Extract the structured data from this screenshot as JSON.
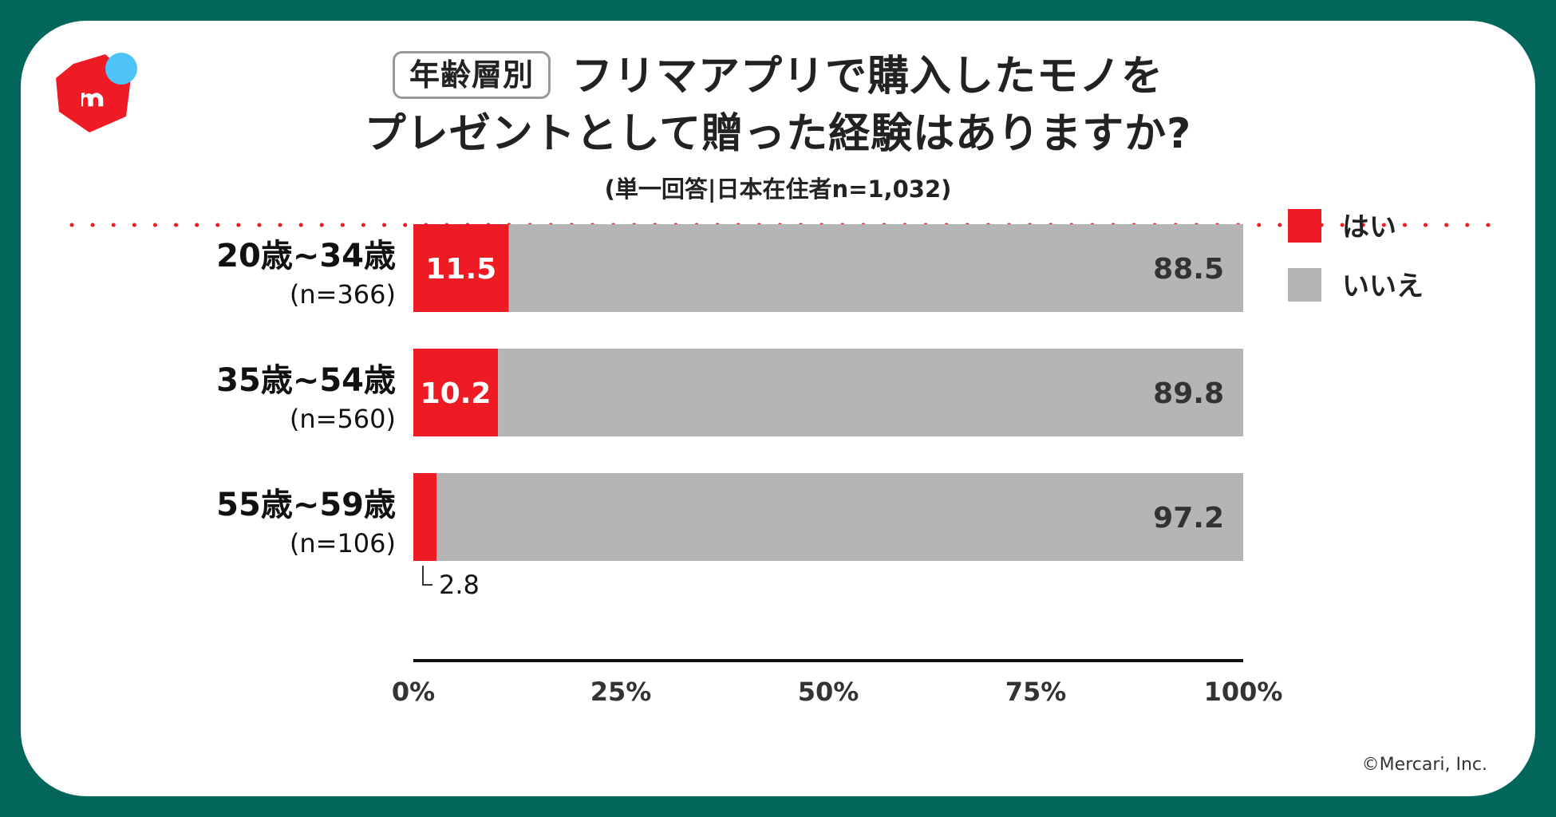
{
  "header": {
    "tag": "年齢層別",
    "title_line1": "フリマアプリで購入したモノを",
    "title_line2": "プレゼントとして贈った経験はありますか?",
    "subtitle": "(単一回答|日本在住者n=1,032)"
  },
  "footer": {
    "copyright": "©Mercari, Inc."
  },
  "colors": {
    "yes": "#ee1b24",
    "no": "#b5b5b5",
    "frame": "#02665b",
    "logo_dot": "#4ec3f7"
  },
  "icons": {
    "logo": "mercari-logo-icon"
  },
  "chart_data": {
    "type": "bar",
    "orientation": "horizontal",
    "stacked": true,
    "categories": [
      "20歳~34歳",
      "35歳~54歳",
      "55歳~59歳"
    ],
    "sample_sizes": [
      "(n=366)",
      "(n=560)",
      "(n=106)"
    ],
    "series": [
      {
        "name": "はい",
        "values": [
          11.5,
          10.2,
          2.8
        ],
        "labels": [
          "11.5",
          "10.2",
          "2.8"
        ],
        "color": "#ee1b24"
      },
      {
        "name": "いいえ",
        "values": [
          88.5,
          89.8,
          97.2
        ],
        "labels": [
          "88.5",
          "89.8",
          "97.2"
        ],
        "color": "#b5b5b5"
      }
    ],
    "xlim": [
      0,
      100
    ],
    "x_ticks": [
      0,
      25,
      50,
      75,
      100
    ],
    "x_tick_labels": [
      "0%",
      "25%",
      "50%",
      "75%",
      "100%"
    ],
    "legend_position": "top-right",
    "grid": false
  }
}
